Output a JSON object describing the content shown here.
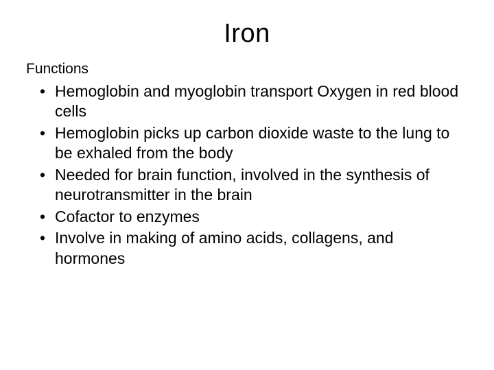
{
  "title": "Iron",
  "subtitle": "Functions",
  "bullets": [
    "Hemoglobin and myoglobin transport Oxygen in red blood cells",
    "Hemoglobin picks up carbon dioxide waste to the lung to be exhaled from the body",
    "Needed for brain function, involved in the synthesis of neurotransmitter in the brain",
    "Cofactor to enzymes",
    "Involve in making of amino acids, collagens, and hormones"
  ],
  "colors": {
    "background": "#ffffff",
    "text": "#000000"
  },
  "typography": {
    "font_family": "Verdana",
    "title_fontsize": 38,
    "subtitle_fontsize": 21,
    "bullet_fontsize": 23
  }
}
